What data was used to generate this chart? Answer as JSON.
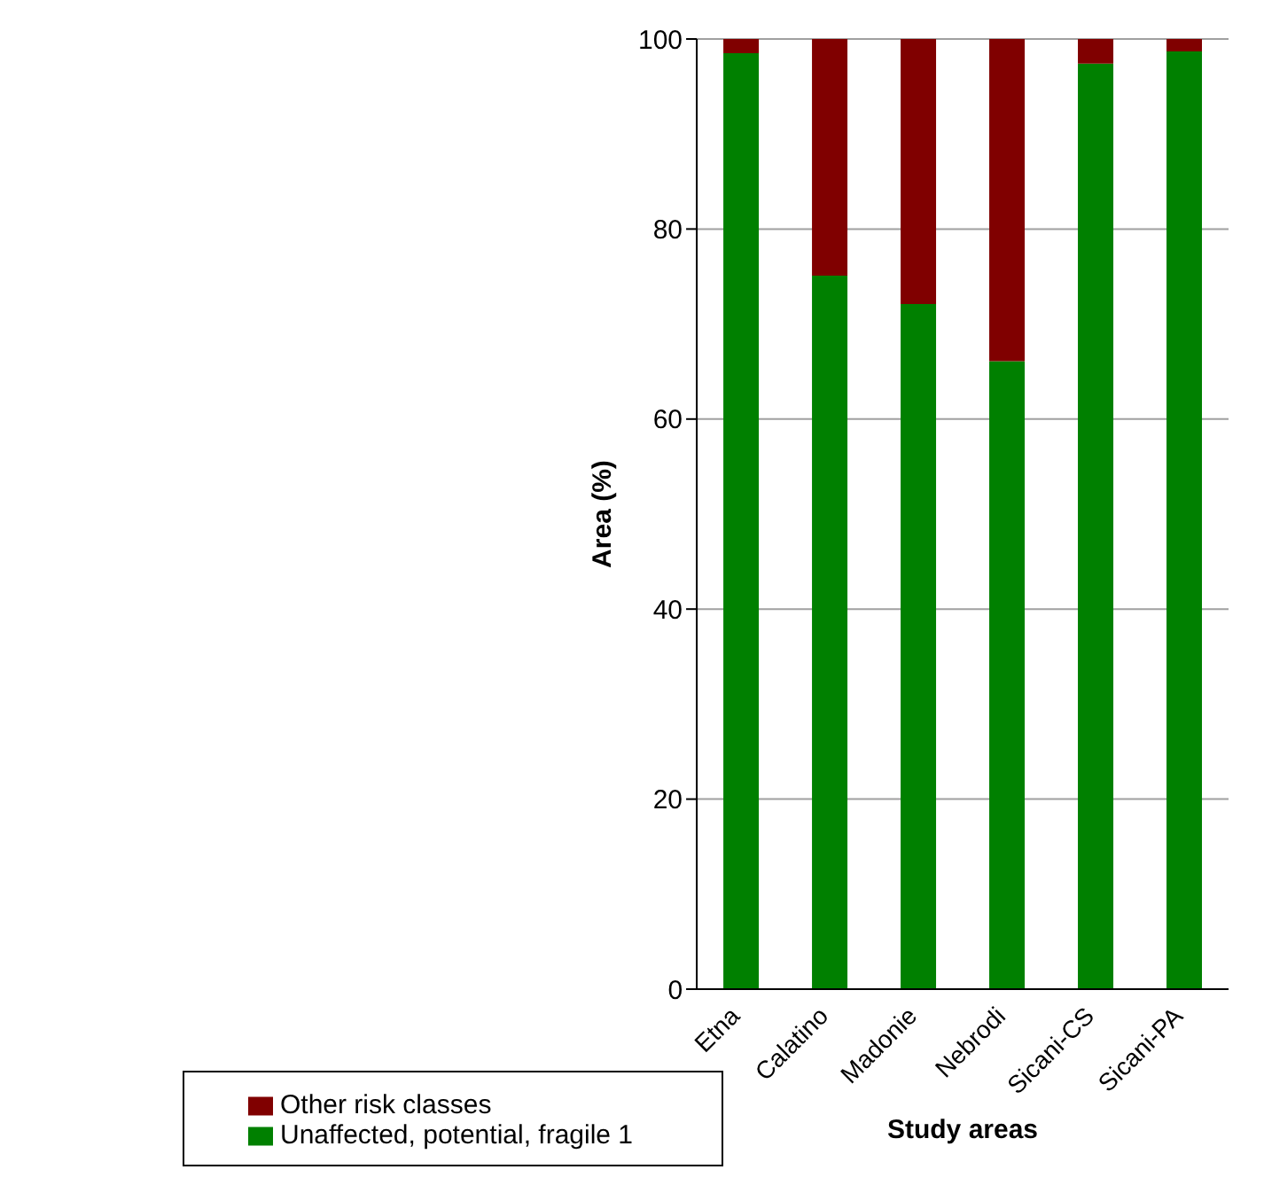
{
  "chart_data": {
    "type": "bar",
    "stacked": true,
    "xlabel": "Study areas",
    "ylabel": "Area (%)",
    "categories": [
      "Etna",
      "Calatino",
      "Madonie",
      "Nebrodi",
      "Sicani-CS",
      "Sicani-PA"
    ],
    "series": [
      {
        "name": "Unaffected, potential, fragile 1",
        "color": "#008000",
        "values": [
          98.5,
          75.1,
          72.1,
          66.1,
          97.4,
          98.7
        ]
      },
      {
        "name": "Other risk classes",
        "color": "#800000",
        "values": [
          1.5,
          24.9,
          27.9,
          33.9,
          2.6,
          1.3
        ]
      }
    ],
    "ylim": [
      0,
      100
    ],
    "yticks": [
      0,
      20,
      40,
      60,
      80,
      100
    ],
    "grid": "y",
    "legend": "bottom left"
  }
}
